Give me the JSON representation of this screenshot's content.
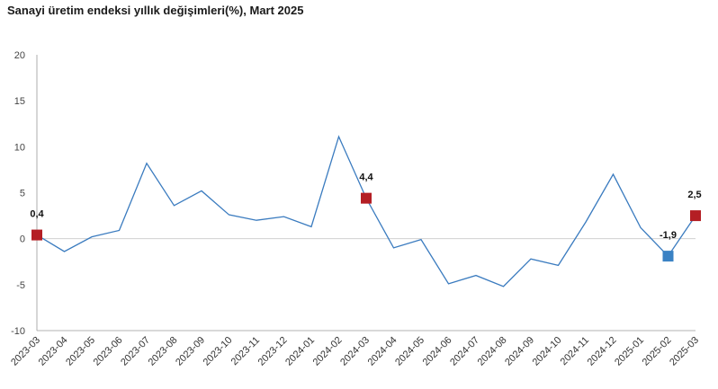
{
  "title": "Sanayi üretim endeksi yıllık değişimleri(%), Mart 2025",
  "colors": {
    "line": "#3a7bbf",
    "highlight_red": "#b41e24",
    "highlight_blue": "#3a82c4",
    "zero_line": "#d0d0d0",
    "axis": "#9a9a9a"
  },
  "chart_data": {
    "type": "line",
    "title": "Sanayi üretim endeksi yıllık değişimleri(%), Mart 2025",
    "xlabel": "",
    "ylabel": "",
    "ylim": [
      -10,
      20
    ],
    "yticks": [
      20,
      15,
      10,
      5,
      0,
      -5,
      -10
    ],
    "grid": false,
    "categories": [
      "2023-03",
      "2023-04",
      "2023-05",
      "2023-06",
      "2023-07",
      "2023-08",
      "2023-09",
      "2023-10",
      "2023-11",
      "2023-12",
      "2024-01",
      "2024-02",
      "2024-03",
      "2024-04",
      "2024-05",
      "2024-06",
      "2024-07",
      "2024-08",
      "2024-09",
      "2024-10",
      "2024-11",
      "2024-12",
      "2025-01",
      "2025-02",
      "2025-03"
    ],
    "values": [
      0.4,
      -1.4,
      0.2,
      0.9,
      8.2,
      3.6,
      5.2,
      2.6,
      2.0,
      2.4,
      1.3,
      11.1,
      4.4,
      -1.0,
      -0.1,
      -4.9,
      -4.0,
      -5.2,
      -2.2,
      -2.9,
      1.8,
      7.0,
      1.2,
      -1.9,
      2.5
    ],
    "highlights": [
      {
        "category": "2023-03",
        "value": 0.4,
        "label": "0,4",
        "color": "red"
      },
      {
        "category": "2024-03",
        "value": 4.4,
        "label": "4,4",
        "color": "red"
      },
      {
        "category": "2025-02",
        "value": -1.9,
        "label": "-1,9",
        "color": "blue"
      },
      {
        "category": "2025-03",
        "value": 2.5,
        "label": "2,5",
        "color": "red"
      }
    ]
  }
}
